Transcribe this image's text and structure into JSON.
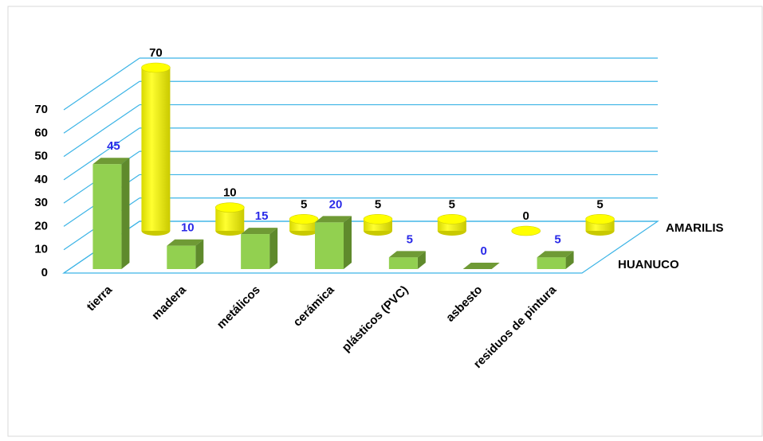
{
  "chart_data": {
    "type": "bar3d",
    "categories": [
      "tierra",
      "madera",
      "metálicos",
      "cerámica",
      "plásticos (PVC)",
      "asbesto",
      "residuos de pintura"
    ],
    "series": [
      {
        "name": "HUANUCO",
        "color": "#92d050",
        "label_color": "#2a2ae8",
        "values": [
          45,
          10,
          15,
          20,
          5,
          0,
          5
        ]
      },
      {
        "name": "AMARILIS",
        "color": "#ffff00",
        "label_color": "#000000",
        "values": [
          70,
          10,
          5,
          5,
          5,
          0,
          5
        ]
      }
    ],
    "ylim": [
      0,
      70
    ],
    "yticks": [
      0,
      10,
      20,
      30,
      40,
      50,
      60,
      70
    ],
    "grid": true,
    "grid_color": "#3cb4e6"
  }
}
